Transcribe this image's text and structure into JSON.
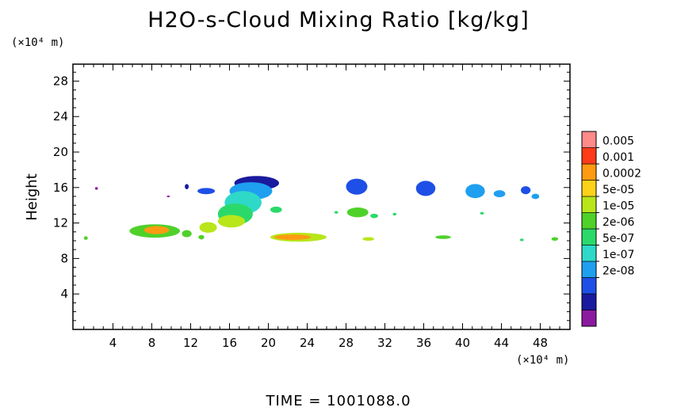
{
  "title": "H2O-s-Cloud Mixing Ratio [kg/kg]",
  "time_label": "TIME  =  1001088.0",
  "y_unit": "(×10⁴ m)",
  "x_unit": "(×10⁴ m)",
  "chart_data": {
    "type": "heatmap",
    "title": "H2O-s-Cloud Mixing Ratio [kg/kg]",
    "ylabel": "Height",
    "xlim": [
      0,
      51
    ],
    "ylim": [
      0,
      30
    ],
    "x_ticks": [
      4,
      8,
      12,
      16,
      20,
      24,
      28,
      32,
      36,
      40,
      44,
      48
    ],
    "y_ticks": [
      4,
      8,
      12,
      16,
      20,
      24,
      28
    ],
    "colorbar": {
      "levels": [
        "0.005",
        "0.001",
        "0.0002",
        "5e-05",
        "1e-05",
        "2e-06",
        "5e-07",
        "1e-07",
        "2e-08"
      ],
      "colors": [
        "#8c1a9f",
        "#1a1a9e",
        "#1e4fe6",
        "#1f9ff0",
        "#2fd9c8",
        "#2bd96b",
        "#4fd12a",
        "#b8e61a",
        "#ffd21a",
        "#ff9b12",
        "#ff3b1a",
        "#ff8a8a"
      ]
    },
    "regions": [
      {
        "x": 2.3,
        "y": 15.9,
        "rx": 0.15,
        "ry": 0.15,
        "level": 0
      },
      {
        "x": 9.7,
        "y": 15.0,
        "rx": 0.15,
        "ry": 0.1,
        "level": 0
      },
      {
        "x": 11.6,
        "y": 16.1,
        "rx": 0.2,
        "ry": 0.3,
        "level": 1
      },
      {
        "x": 13.6,
        "y": 15.6,
        "rx": 0.9,
        "ry": 0.35,
        "level": 2
      },
      {
        "x": 18.8,
        "y": 16.5,
        "rx": 2.3,
        "ry": 0.8,
        "level": 1
      },
      {
        "x": 18.2,
        "y": 15.6,
        "rx": 2.2,
        "ry": 1.0,
        "level": 3
      },
      {
        "x": 17.4,
        "y": 14.3,
        "rx": 1.9,
        "ry": 1.3,
        "level": 4
      },
      {
        "x": 16.6,
        "y": 13.0,
        "rx": 1.8,
        "ry": 1.2,
        "level": 5
      },
      {
        "x": 16.2,
        "y": 12.2,
        "rx": 1.4,
        "ry": 0.7,
        "level": 7
      },
      {
        "x": 20.8,
        "y": 13.5,
        "rx": 0.6,
        "ry": 0.35,
        "level": 5
      },
      {
        "x": 29.1,
        "y": 16.1,
        "rx": 1.1,
        "ry": 0.9,
        "level": 2
      },
      {
        "x": 29.2,
        "y": 13.2,
        "rx": 1.1,
        "ry": 0.55,
        "level": 6
      },
      {
        "x": 30.9,
        "y": 12.8,
        "rx": 0.4,
        "ry": 0.25,
        "level": 5
      },
      {
        "x": 36.2,
        "y": 15.9,
        "rx": 1.0,
        "ry": 0.85,
        "level": 2
      },
      {
        "x": 41.3,
        "y": 15.6,
        "rx": 1.0,
        "ry": 0.8,
        "level": 3
      },
      {
        "x": 43.8,
        "y": 15.3,
        "rx": 0.6,
        "ry": 0.4,
        "level": 3
      },
      {
        "x": 46.5,
        "y": 15.7,
        "rx": 0.5,
        "ry": 0.45,
        "level": 2
      },
      {
        "x": 47.5,
        "y": 15.0,
        "rx": 0.4,
        "ry": 0.3,
        "level": 3
      },
      {
        "x": 8.3,
        "y": 11.1,
        "rx": 2.6,
        "ry": 0.75,
        "level": 6
      },
      {
        "x": 8.5,
        "y": 11.2,
        "rx": 1.3,
        "ry": 0.45,
        "level": 9
      },
      {
        "x": 11.6,
        "y": 10.8,
        "rx": 0.5,
        "ry": 0.4,
        "level": 6
      },
      {
        "x": 13.8,
        "y": 11.5,
        "rx": 0.9,
        "ry": 0.6,
        "level": 7
      },
      {
        "x": 13.1,
        "y": 10.4,
        "rx": 0.3,
        "ry": 0.25,
        "level": 6
      },
      {
        "x": 23.1,
        "y": 10.4,
        "rx": 2.9,
        "ry": 0.5,
        "level": 7
      },
      {
        "x": 22.5,
        "y": 10.4,
        "rx": 1.9,
        "ry": 0.3,
        "level": 9
      },
      {
        "x": 30.3,
        "y": 10.2,
        "rx": 0.6,
        "ry": 0.2,
        "level": 7
      },
      {
        "x": 38.0,
        "y": 10.4,
        "rx": 0.8,
        "ry": 0.2,
        "level": 6
      },
      {
        "x": 1.2,
        "y": 10.3,
        "rx": 0.2,
        "ry": 0.2,
        "level": 6
      },
      {
        "x": 46.1,
        "y": 10.1,
        "rx": 0.2,
        "ry": 0.15,
        "level": 5
      },
      {
        "x": 49.5,
        "y": 10.2,
        "rx": 0.35,
        "ry": 0.2,
        "level": 6
      },
      {
        "x": 27.0,
        "y": 13.2,
        "rx": 0.2,
        "ry": 0.15,
        "level": 5
      },
      {
        "x": 33.0,
        "y": 13.0,
        "rx": 0.2,
        "ry": 0.15,
        "level": 5
      },
      {
        "x": 42.0,
        "y": 13.1,
        "rx": 0.2,
        "ry": 0.15,
        "level": 5
      }
    ]
  }
}
